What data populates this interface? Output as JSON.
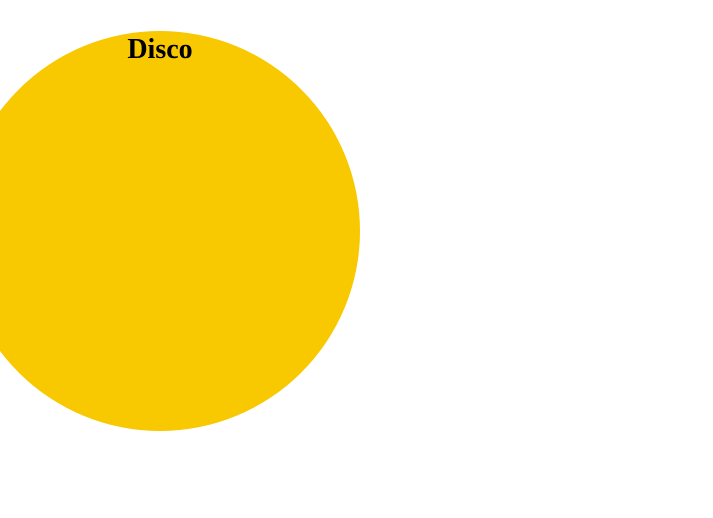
{
  "circle": {
    "label": "Disco",
    "color": "#f8c800"
  }
}
